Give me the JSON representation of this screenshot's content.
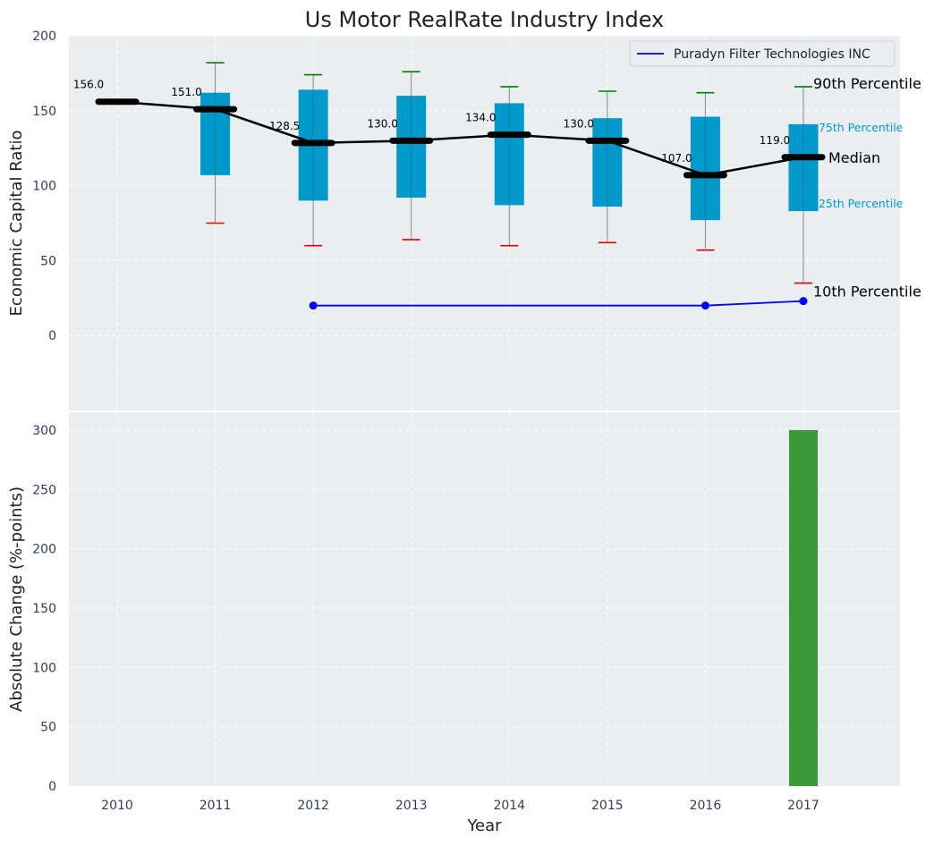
{
  "chart_data": [
    {
      "type": "box",
      "title": "Us Motor RealRate Industry Index",
      "ylabel": "Economic Capital Ratio",
      "ylim": [
        -50,
        200
      ],
      "yticks": [
        0,
        50,
        100,
        150,
        200
      ],
      "categories": [
        "2010",
        "2011",
        "2012",
        "2013",
        "2014",
        "2015",
        "2016",
        "2017"
      ],
      "grid": true,
      "legend": {
        "position": "top-right",
        "entries": [
          "Puradyn Filter Technologies INC"
        ]
      },
      "boxes": [
        {
          "year": "2010",
          "p10": null,
          "p25": null,
          "median": 156.0,
          "p75": null,
          "p90": null
        },
        {
          "year": "2011",
          "p10": 75,
          "p25": 107,
          "median": 151.0,
          "p75": 162,
          "p90": 182
        },
        {
          "year": "2012",
          "p10": 60,
          "p25": 90,
          "median": 128.5,
          "p75": 164,
          "p90": 174
        },
        {
          "year": "2013",
          "p10": 64,
          "p25": 92,
          "median": 130.0,
          "p75": 160,
          "p90": 176
        },
        {
          "year": "2014",
          "p10": 60,
          "p25": 87,
          "median": 134.0,
          "p75": 155,
          "p90": 166
        },
        {
          "year": "2015",
          "p10": 62,
          "p25": 86,
          "median": 130.0,
          "p75": 145,
          "p90": 163
        },
        {
          "year": "2016",
          "p10": 57,
          "p25": 77,
          "median": 107.0,
          "p75": 146,
          "p90": 162
        },
        {
          "year": "2017",
          "p10": 35,
          "p25": 83,
          "median": 119.0,
          "p75": 141,
          "p90": 166
        }
      ],
      "median_labels": [
        "156.0",
        "151.0",
        "128.5",
        "130.0",
        "134.0",
        "130.0",
        "107.0",
        "119.0"
      ],
      "series": [
        {
          "name": "Puradyn Filter Technologies INC",
          "x": [
            "2012",
            "2016",
            "2017"
          ],
          "values": [
            20,
            20,
            23
          ],
          "color": "#0000ff"
        }
      ],
      "annotations": {
        "p90": "90th Percentile",
        "p75": "75th Percentile",
        "median": "Median",
        "p25": "25th Percentile",
        "p10": "10th Percentile"
      },
      "colors": {
        "box": "#0099cc",
        "median": "#000000",
        "whisker_top": "#008000",
        "whisker_bottom": "#e00000",
        "background": "#eaeef0"
      }
    },
    {
      "type": "bar",
      "xlabel": "Year",
      "ylabel": "Absolute Change (%-points)",
      "ylim": [
        0,
        315
      ],
      "yticks": [
        0,
        50,
        100,
        150,
        200,
        250,
        300
      ],
      "categories": [
        "2010",
        "2011",
        "2012",
        "2013",
        "2014",
        "2015",
        "2016",
        "2017"
      ],
      "values": [
        null,
        null,
        null,
        null,
        null,
        null,
        null,
        300
      ],
      "colors": {
        "bar": "#3a9a3a",
        "background": "#eaeef0"
      }
    }
  ]
}
